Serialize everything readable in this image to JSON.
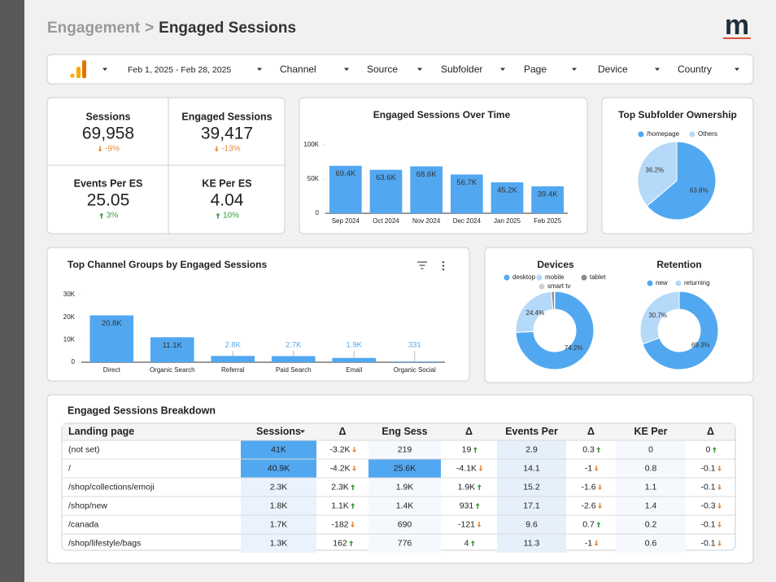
{
  "header": {
    "breadcrumb": [
      "Engagement",
      ">"
    ],
    "title": "Engaged Sessions",
    "logo": "m"
  },
  "filters": {
    "date_range": "Feb 1, 2025 - Feb 28, 2025",
    "controls": [
      "Channel",
      "Source",
      "Subfolder",
      "Page",
      "Device",
      "Country"
    ]
  },
  "kpis": [
    {
      "label": "Sessions",
      "value": "69,958",
      "change": "-9%"
    },
    {
      "label": "Engaged Sessions",
      "value": "39,417",
      "change": "-13%"
    },
    {
      "label": "Events Per ES",
      "value": "25.05",
      "change": "3%"
    },
    {
      "label": "KE Per ES",
      "value": "4.04",
      "change": "10%"
    }
  ],
  "sessions_over_time": {
    "type": "bar",
    "title": "Engaged Sessions Over Time",
    "categories": [
      "Sep 2024",
      "Oct 2024",
      "Nov 2024",
      "Dec 2024",
      "Jan 2025",
      "Feb 2025"
    ],
    "values": [
      69400,
      63600,
      68600,
      56700,
      45200,
      39400
    ],
    "value_labels": [
      "69.4K",
      "63.6K",
      "68.6K",
      "56.7K",
      "45.2K",
      "39.4K"
    ],
    "color": "#52a8f0",
    "ylim": [
      0,
      100000
    ],
    "yticks": [
      0,
      {
        "value": 50000,
        "label": "50K"
      },
      {
        "value": 100000,
        "label": "100K"
      }
    ]
  },
  "subfolder_ownership": {
    "type": "pie",
    "title": "Top Subfolder Ownership",
    "categories": [
      "/homepage",
      "Others"
    ],
    "values": [
      63.8,
      36.2
    ],
    "value_labels": [
      "63.8%",
      "36.2%"
    ],
    "colors": [
      "#52a8f0",
      "#b5d9f8"
    ]
  },
  "channel_groups": {
    "type": "bar",
    "title": "Top Channel Groups by Engaged Sessions",
    "categories": [
      "Direct",
      "Organic Search",
      "Referral",
      "Paid Search",
      "Email",
      "Organic Social"
    ],
    "values": [
      20800,
      11100,
      2800,
      2700,
      1900,
      331
    ],
    "value_labels": [
      "20.8K",
      "11.1K",
      "2.8K",
      "2.7K",
      "1.9K",
      "331"
    ],
    "color": "#52a8f0",
    "ylim": [
      0,
      30000
    ],
    "yticks": [
      0,
      {
        "value": 10000,
        "label": "10K"
      },
      {
        "value": 20000,
        "label": "20K"
      },
      {
        "value": 30000,
        "label": "30K"
      }
    ]
  },
  "devices": {
    "type": "donut",
    "title": "Devices",
    "categories": [
      "desktop",
      "mobile",
      "tablet",
      "smart tv"
    ],
    "values": [
      74.2,
      24.4,
      1.2,
      0.2
    ],
    "value_labels": [
      "74.2%",
      "24.4%",
      null,
      null
    ],
    "colors": [
      "#52a8f0",
      "#b5d9f8",
      "#8a8a8a",
      "#cfcfcf"
    ]
  },
  "retention": {
    "type": "donut",
    "title": "Retention",
    "categories": [
      "new",
      "returning"
    ],
    "values": [
      69.3,
      30.7
    ],
    "value_labels": [
      "69.3%",
      "30.7%"
    ],
    "colors": [
      "#52a8f0",
      "#b5d9f8"
    ]
  },
  "breakdown": {
    "title": "Engaged Sessions Breakdown",
    "columns": [
      "Landing page",
      "Sessions",
      "Δ",
      "Eng Sess",
      "Δ",
      "Events Per",
      "Δ",
      "KE Per",
      "Δ"
    ],
    "rows": [
      [
        "(not set)",
        "41K",
        "-3.2K",
        "219",
        "19",
        "2.9",
        "0.3",
        "0",
        "0"
      ],
      [
        "/",
        "40.9K",
        "-4.2K",
        "25.6K",
        "-4.1K",
        "14.1",
        "-1",
        "0.8",
        "-0.1"
      ],
      [
        "/shop/collections/emoji",
        "2.3K",
        "2.3K",
        "1.9K",
        "1.9K",
        "15.2",
        "-1.6",
        "1.1",
        "-0.1"
      ],
      [
        "/shop/new",
        "1.8K",
        "1.1K",
        "1.4K",
        "931",
        "17.1",
        "-2.6",
        "1.4",
        "-0.3"
      ],
      [
        "/canada",
        "1.7K",
        "-182",
        "690",
        "-121",
        "9.6",
        "0.7",
        "0.2",
        "-0.1"
      ],
      [
        "/shop/lifestyle/bags",
        "1.3K",
        "162",
        "776",
        "4",
        "11.3",
        "-1",
        "0.6",
        "-0.1"
      ]
    ]
  }
}
